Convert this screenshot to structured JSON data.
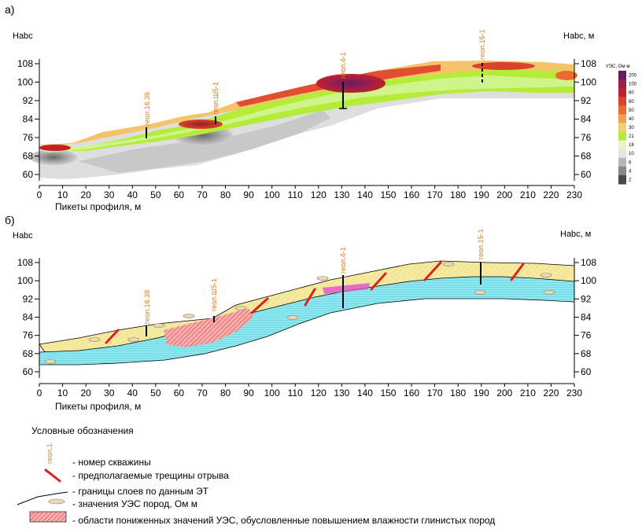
{
  "panel_a": {
    "letter": "а)",
    "h_left": "Нabc",
    "h_right": "Нabc, м",
    "x_axis_title": "Пикеты профиля, м",
    "x_ticks": [
      "0",
      "10",
      "20",
      "30",
      "40",
      "50",
      "60",
      "70",
      "80",
      "90",
      "100",
      "110",
      "120",
      "130",
      "140",
      "150",
      "160",
      "170",
      "180",
      "190",
      "200",
      "210",
      "220",
      "230"
    ],
    "y_ticks": [
      "108",
      "100",
      "92",
      "84",
      "76",
      "68",
      "60"
    ],
    "boreholes": [
      "геол.16.36",
      "геол.Ш5-1",
      "геол.4-1",
      "геол.15-1"
    ],
    "colorbar": {
      "title": "УЭС, Ом·м",
      "labels": [
        "200",
        "100",
        "80",
        "60",
        "50",
        "40",
        "30",
        "21",
        "18",
        "10",
        "6",
        "4",
        "2"
      ],
      "colors": [
        "#6b1a5a",
        "#9c1e4d",
        "#c0202a",
        "#d8432a",
        "#ea6a30",
        "#f1a046",
        "#f7cf72",
        "#b5ec3a",
        "#e6f6c8",
        "#e4e4e4",
        "#b7b7b7",
        "#888888",
        "#4a4a4a"
      ]
    }
  },
  "panel_b": {
    "letter": "б)",
    "h_left": "Нabc",
    "h_right": "Нabc, м",
    "x_axis_title": "Пикеты профиля, м",
    "x_ticks": [
      "0",
      "10",
      "20",
      "30",
      "40",
      "50",
      "60",
      "70",
      "80",
      "90",
      "100",
      "110",
      "120",
      "130",
      "140",
      "150",
      "160",
      "170",
      "180",
      "190",
      "200",
      "210",
      "220",
      "230"
    ],
    "y_ticks": [
      "108",
      "100",
      "92",
      "84",
      "76",
      "68",
      "60"
    ],
    "boreholes": [
      "геол.16.38",
      "геол.Ш5-1",
      "геол.4-1",
      "геол.15-1"
    ]
  },
  "legend": {
    "title": "Условные обозначения",
    "borehole_sample": "геол.1",
    "items": [
      "- номер скважины",
      "- предполагаемые трещины отрыва",
      "- границы слоев по данным ЭТ",
      "- значения УЭС пород, Ом м",
      "- области пониженных значений УЭС, обусловленные повышением влажности глинистых пород"
    ]
  },
  "colors": {
    "borehole_label": "#e07b1a",
    "crack": "#e0201c",
    "water_layer": "#8ee8f0",
    "yellow_layer": "#f5eaa0",
    "low_res_hatch": "#e03a3a"
  }
}
